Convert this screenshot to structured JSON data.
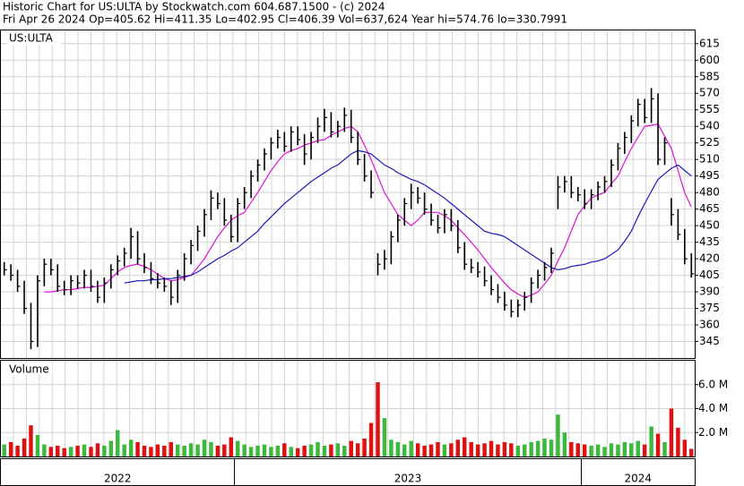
{
  "chart_data": {
    "type": "ohlc",
    "title": "Historic Chart for US:ULTA by Stockwatch.com 604.687.1500 - (c) 2024",
    "subtitle": "Fri Apr 26 2024   Op=405.62   Hi=411.35   Lo=402.95   Cl=406.39   Vol=637,624   Year hi=574.76   lo=330.7991",
    "symbol": "US:ULTA",
    "volume_label": "Volume",
    "years": [
      "2022",
      "2023",
      "2024"
    ],
    "year_starts": [
      0,
      35,
      87
    ],
    "xlim": [
      0,
      104
    ],
    "ylim": [
      330,
      627
    ],
    "yticks": [
      345,
      360,
      375,
      390,
      405,
      420,
      435,
      450,
      465,
      480,
      495,
      510,
      525,
      540,
      555,
      570,
      585,
      600,
      615
    ],
    "grid": true,
    "bar_color": "#000000",
    "high": [
      417,
      415,
      410,
      400,
      380,
      405,
      420,
      420,
      415,
      400,
      405,
      405,
      410,
      410,
      400,
      403,
      415,
      423,
      430,
      448,
      445,
      425,
      417,
      407,
      403,
      400,
      410,
      425,
      437,
      450,
      465,
      482,
      480,
      475,
      460,
      475,
      485,
      500,
      510,
      520,
      530,
      537,
      535,
      540,
      540,
      533,
      535,
      548,
      556,
      553,
      545,
      557,
      555,
      535,
      515,
      500,
      425,
      428,
      445,
      460,
      475,
      488,
      485,
      480,
      470,
      460,
      465,
      465,
      455,
      435,
      420,
      417,
      413,
      405,
      397,
      390,
      383,
      383,
      390,
      403,
      410,
      417,
      430,
      495,
      495,
      495,
      485,
      483,
      483,
      490,
      495,
      510,
      525,
      535,
      550,
      565,
      565,
      574.76,
      570,
      530,
      475,
      465,
      447,
      425
    ],
    "low": [
      405,
      400,
      390,
      370,
      338,
      340,
      395,
      405,
      390,
      387,
      387,
      393,
      393,
      390,
      380,
      380,
      393,
      405,
      413,
      420,
      415,
      407,
      397,
      393,
      390,
      378,
      380,
      400,
      415,
      427,
      440,
      455,
      465,
      450,
      435,
      435,
      465,
      475,
      490,
      500,
      510,
      520,
      517,
      517,
      523,
      505,
      510,
      525,
      535,
      530,
      530,
      535,
      525,
      505,
      490,
      475,
      405,
      410,
      415,
      435,
      450,
      465,
      470,
      460,
      450,
      443,
      443,
      445,
      425,
      410,
      407,
      403,
      395,
      387,
      380,
      373,
      367,
      367,
      373,
      380,
      393,
      400,
      407,
      465,
      480,
      475,
      472,
      465,
      465,
      473,
      480,
      485,
      500,
      515,
      525,
      540,
      543,
      543,
      505,
      505,
      450,
      437,
      415,
      402.95
    ],
    "close": [
      410,
      405,
      395,
      375,
      345,
      400,
      415,
      410,
      395,
      392,
      400,
      398,
      405,
      395,
      385,
      398,
      410,
      418,
      425,
      440,
      420,
      412,
      402,
      398,
      395,
      385,
      405,
      420,
      432,
      445,
      460,
      475,
      470,
      455,
      440,
      470,
      480,
      495,
      505,
      515,
      525,
      530,
      522,
      535,
      528,
      515,
      530,
      540,
      548,
      535,
      540,
      550,
      530,
      510,
      495,
      480,
      415,
      420,
      440,
      455,
      470,
      480,
      475,
      465,
      455,
      448,
      460,
      450,
      430,
      415,
      412,
      408,
      400,
      392,
      385,
      378,
      372,
      378,
      385,
      398,
      405,
      412,
      425,
      485,
      490,
      480,
      478,
      470,
      478,
      485,
      490,
      505,
      520,
      530,
      545,
      560,
      548,
      565,
      510,
      525,
      460,
      442,
      420,
      406.39
    ],
    "series": [
      {
        "color": "#e010d8",
        "values": [
          null,
          null,
          null,
          null,
          null,
          null,
          390,
          390,
          391,
          392,
          392,
          393,
          394,
          394,
          395,
          396,
          402,
          408,
          412,
          414,
          415,
          413,
          410,
          406,
          402,
          400,
          401,
          403,
          405,
          412,
          420,
          430,
          440,
          448,
          455,
          459,
          462,
          471,
          480,
          490,
          500,
          508,
          515,
          518,
          520,
          523,
          525,
          527,
          528,
          532,
          535,
          538,
          540,
          535,
          523,
          510,
          495,
          480,
          470,
          460,
          455,
          450,
          455,
          462,
          462,
          462,
          459,
          455,
          448,
          442,
          435,
          428,
          420,
          412,
          405,
          398,
          392,
          388,
          385,
          387,
          390,
          397,
          405,
          418,
          430,
          445,
          460,
          468,
          475,
          478,
          480,
          488,
          495,
          508,
          520,
          530,
          540,
          541,
          542,
          531,
          520,
          500,
          480,
          467
        ]
      },
      {
        "color": "#1a1ab8",
        "values": [
          null,
          null,
          null,
          null,
          null,
          null,
          null,
          null,
          null,
          null,
          null,
          null,
          null,
          null,
          null,
          null,
          null,
          null,
          398,
          399,
          400,
          400,
          401,
          401,
          402,
          402,
          403,
          404,
          405,
          408,
          412,
          416,
          420,
          423,
          427,
          430,
          435,
          440,
          445,
          452,
          458,
          464,
          470,
          475,
          480,
          485,
          490,
          494,
          498,
          502,
          505,
          510,
          515,
          518,
          517,
          515,
          510,
          505,
          502,
          498,
          495,
          492,
          490,
          487,
          483,
          479,
          475,
          470,
          465,
          460,
          455,
          450,
          445,
          443,
          442,
          440,
          436,
          432,
          428,
          424,
          420,
          416,
          412,
          410,
          411,
          413,
          414,
          415,
          417,
          418,
          420,
          424,
          428,
          436,
          445,
          458,
          470,
          481,
          492,
          497,
          502,
          505,
          500,
          495
        ]
      }
    ],
    "volume": [
      1.0,
      1.2,
      0.9,
      1.5,
      2.6,
      1.8,
      1.0,
      0.8,
      0.9,
      0.7,
      0.8,
      0.9,
      1.0,
      0.8,
      1.1,
      0.9,
      1.3,
      2.2,
      1.0,
      1.4,
      1.2,
      0.9,
      0.8,
      1.0,
      0.9,
      1.2,
      1.0,
      0.9,
      1.1,
      1.0,
      1.4,
      1.2,
      0.9,
      1.0,
      1.6,
      1.3,
      1.0,
      0.8,
      0.9,
      1.0,
      0.8,
      0.9,
      1.1,
      0.8,
      0.7,
      0.9,
      1.0,
      1.2,
      0.9,
      1.0,
      1.1,
      0.9,
      1.3,
      1.1,
      1.5,
      2.8,
      6.2,
      3.2,
      1.4,
      1.2,
      1.0,
      1.3,
      1.1,
      0.9,
      1.0,
      1.2,
      1.0,
      1.1,
      1.4,
      1.6,
      1.2,
      1.0,
      1.1,
      1.3,
      1.0,
      1.2,
      1.1,
      0.9,
      1.0,
      1.2,
      1.3,
      1.5,
      1.4,
      3.5,
      2.0,
      1.2,
      1.1,
      1.0,
      0.9,
      1.0,
      0.8,
      1.1,
      1.0,
      1.2,
      1.1,
      1.3,
      1.0,
      2.5,
      1.9,
      1.2,
      4.0,
      2.4,
      1.4,
      0.637624
    ],
    "volume_ylim": [
      0,
      8
    ],
    "volume_yticks": [
      {
        "value": 2,
        "label": "2.0 M"
      },
      {
        "value": 4,
        "label": "4.0 M"
      },
      {
        "value": 6,
        "label": "6.0 M"
      }
    ],
    "up_color": "#3cb83c",
    "down_color": "#e01010"
  }
}
